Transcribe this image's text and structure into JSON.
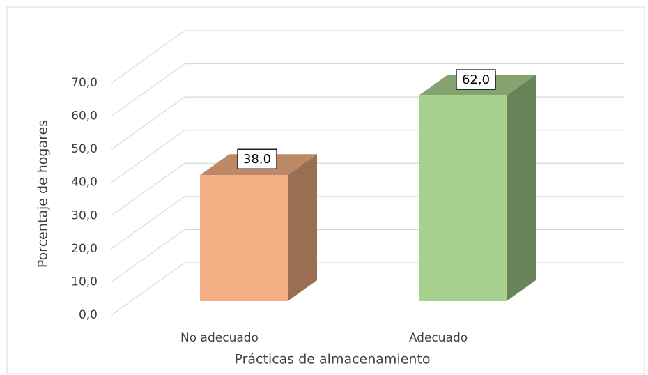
{
  "chart_data": {
    "type": "bar3d",
    "x_label": "Prácticas de almacenamiento",
    "y_label": "Porcentaje de hogares",
    "categories": [
      "No adecuado",
      "Adecuado"
    ],
    "values": [
      38,
      62
    ],
    "value_labels": [
      "38,0",
      "62,0"
    ],
    "colors": [
      "#f4ae84",
      "#a9d18e"
    ],
    "ylim": [
      0,
      70
    ],
    "yticks": [
      {
        "value": 0,
        "label": "0,0"
      },
      {
        "value": 10,
        "label": "10,0"
      },
      {
        "value": 20,
        "label": "20,0"
      },
      {
        "value": 30,
        "label": "30,0"
      },
      {
        "value": 40,
        "label": "40,0"
      },
      {
        "value": 50,
        "label": "50,0"
      },
      {
        "value": 60,
        "label": "60,0"
      },
      {
        "value": 70,
        "label": "70,0"
      }
    ],
    "grid": true
  }
}
